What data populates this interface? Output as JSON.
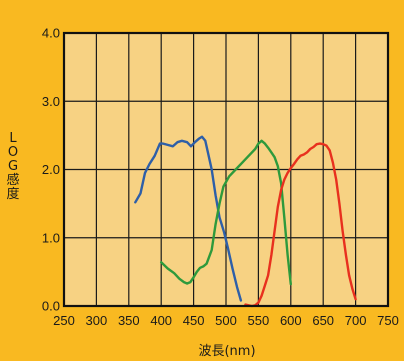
{
  "chart_data": {
    "type": "line",
    "xlabel": "波長(nm)",
    "ylabel": "LOG感度",
    "xlim": [
      250,
      750
    ],
    "ylim": [
      0.0,
      4.0
    ],
    "x_ticks": [
      250,
      300,
      350,
      400,
      450,
      500,
      550,
      600,
      650,
      700,
      750
    ],
    "y_ticks": [
      0.0,
      1.0,
      2.0,
      3.0,
      4.0
    ],
    "x_tick_labels": [
      "250",
      "300",
      "350",
      "400",
      "450",
      "500",
      "550",
      "600",
      "650",
      "700",
      "750"
    ],
    "y_tick_labels": [
      "0.0",
      "1.0",
      "2.0",
      "3.0",
      "4.0"
    ],
    "grid": true,
    "plot_background": "#f7d283",
    "page_background": "#f9b921",
    "series": [
      {
        "color": "#2e5fa8",
        "x": [
          360,
          368,
          375,
          382,
          390,
          398,
          403,
          410,
          418,
          425,
          432,
          440,
          446,
          452,
          458,
          463,
          468,
          472,
          478,
          484,
          490,
          497,
          503,
          510,
          517,
          523
        ],
        "y": [
          1.52,
          1.65,
          1.95,
          2.08,
          2.2,
          2.38,
          2.38,
          2.36,
          2.34,
          2.4,
          2.42,
          2.4,
          2.34,
          2.4,
          2.45,
          2.48,
          2.42,
          2.25,
          2.0,
          1.62,
          1.3,
          1.08,
          0.85,
          0.55,
          0.28,
          0.08
        ]
      },
      {
        "color": "#2e9a3c",
        "x": [
          400,
          410,
          420,
          428,
          435,
          440,
          445,
          450,
          455,
          460,
          465,
          470,
          478,
          484,
          490,
          496,
          505,
          515,
          525,
          535,
          545,
          550,
          555,
          560,
          565,
          570,
          575,
          580,
          585,
          590,
          595,
          600
        ],
        "y": [
          0.64,
          0.55,
          0.48,
          0.4,
          0.35,
          0.33,
          0.35,
          0.42,
          0.5,
          0.56,
          0.58,
          0.62,
          0.82,
          1.2,
          1.5,
          1.75,
          1.9,
          2.0,
          2.1,
          2.2,
          2.3,
          2.38,
          2.42,
          2.38,
          2.32,
          2.25,
          2.18,
          2.05,
          1.8,
          1.3,
          0.75,
          0.32
        ]
      },
      {
        "color": "#e8301e",
        "x": [
          530,
          540,
          545,
          550,
          555,
          560,
          565,
          570,
          575,
          580,
          585,
          590,
          595,
          600,
          605,
          610,
          615,
          620,
          625,
          630,
          635,
          640,
          645,
          650,
          655,
          660,
          665,
          670,
          675,
          680,
          685,
          690,
          695,
          700
        ],
        "y": [
          0.02,
          0.0,
          0.01,
          0.05,
          0.15,
          0.3,
          0.45,
          0.75,
          1.1,
          1.45,
          1.7,
          1.85,
          1.95,
          2.02,
          2.08,
          2.15,
          2.2,
          2.22,
          2.25,
          2.3,
          2.33,
          2.37,
          2.38,
          2.37,
          2.35,
          2.28,
          2.1,
          1.85,
          1.5,
          1.1,
          0.75,
          0.45,
          0.25,
          0.1
        ]
      }
    ]
  }
}
